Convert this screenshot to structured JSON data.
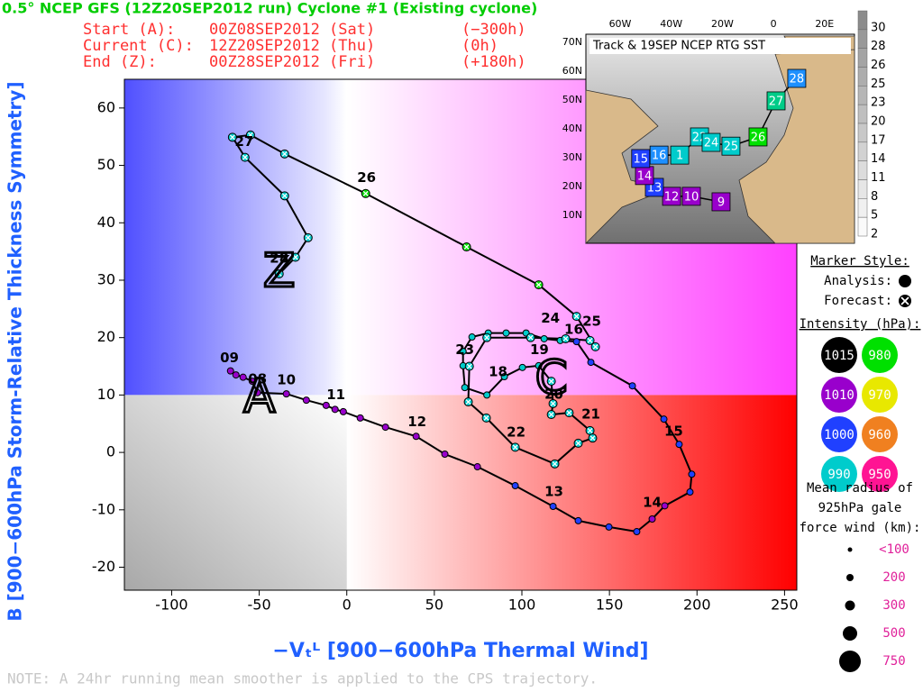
{
  "header": {
    "title": "0.5° NCEP GFS (12Z20SEP2012 run) Cyclone #1 (Existing cyclone)",
    "rows": [
      [
        "Start (A):",
        "00Z08SEP2012 (Sat)",
        "(−300h)"
      ],
      [
        "Current (C):",
        "12Z20SEP2012 (Thu)",
        "(0h)"
      ],
      [
        "End (Z):",
        "00Z28SEP2012 (Fri)",
        "(+180h)"
      ]
    ]
  },
  "chart_data": {
    "type": "line",
    "xlabel": "−Vₜᴸ [900−600hPa Thermal Wind]",
    "ylabel": "B [900−600hPa Storm-Relative Thickness Symmetry]",
    "xlim": [
      -127,
      257
    ],
    "ylim": [
      -24,
      65
    ],
    "xticks": [
      -100,
      -50,
      0,
      50,
      100,
      150,
      200,
      250
    ],
    "yticks": [
      -20,
      -10,
      0,
      10,
      20,
      30,
      40,
      50,
      60
    ],
    "threshold_x": 0,
    "threshold_y": 10,
    "series": [
      {
        "color": "#9900cc",
        "style": "analysis",
        "x": [
          -66.4,
          -63.3,
          -59.2,
          -54,
          -51,
          -34.5,
          -23.1,
          -11.8,
          -6.7,
          -2,
          7.7,
          22.1,
          39.6,
          56,
          74.6
        ],
        "y": [
          14.2,
          13.5,
          13.1,
          12.4,
          10.4,
          10.2,
          9.1,
          8.2,
          7.5,
          7.1,
          6,
          4.4,
          2.8,
          -0.3,
          -2.5
        ]
      },
      {
        "color": "#2040ff",
        "style": "analysis",
        "x": [
          96.2,
          117.8,
          132.2,
          149.7,
          165.6
        ],
        "y": [
          -5.8,
          -9.4,
          -11.9,
          -13,
          -13.8
        ]
      },
      {
        "color": "#9900cc",
        "style": "analysis",
        "x": [
          174.4,
          181.6
        ],
        "y": [
          -11.6,
          -9.3
        ]
      },
      {
        "color": "#2040ff",
        "style": "analysis",
        "x": [
          196,
          197,
          189.8,
          181.1,
          163.1,
          139.4,
          131.2
        ],
        "y": [
          -6.9,
          -3.8,
          1.4,
          5.8,
          11.6,
          15.7,
          19.3
        ]
      },
      {
        "color": "#00cccc",
        "style": "analysis",
        "x": [
          121.9,
          112.7,
          102.4,
          91,
          80.8,
          71.5,
          66.4,
          66.4,
          67.4,
          80,
          90,
          100.3,
          109.6
        ],
        "y": [
          19.5,
          19.8,
          20.8,
          20.8,
          20.8,
          20.1,
          17.6,
          15.1,
          11.3,
          10,
          13.2,
          14.8,
          15.1
        ]
      },
      {
        "color": "#00cccc",
        "style": "forecast",
        "x": [
          116.8,
          117.8,
          116.8,
          127,
          138.9,
          140.4,
          132.2,
          118.8,
          96.2,
          79.7,
          69.4,
          70,
          80,
          105,
          125,
          138.9,
          142,
          131.2
        ],
        "y": [
          12.4,
          8.5,
          6.6,
          6.9,
          3.8,
          2.5,
          1.6,
          -2,
          0.9,
          6,
          8.8,
          15,
          20,
          20,
          19.8,
          19.5,
          18.4,
          23.7
        ]
      },
      {
        "color": "#00e000",
        "style": "forecast",
        "x": [
          109.6,
          68.4,
          10.8
        ],
        "y": [
          29.2,
          35.8,
          45.1
        ]
      },
      {
        "color": "#00cccc",
        "style": "forecast",
        "x": [
          -35.5,
          -55,
          -65.3,
          -58.1,
          -35.5,
          -22.1,
          -29.3,
          -38.6
        ],
        "y": [
          52,
          55.3,
          54.9,
          51.4,
          44.7,
          37.4,
          34,
          31.1
        ]
      }
    ],
    "annotations": [
      {
        "text": "09",
        "x": -67,
        "y": 16.4
      },
      {
        "text": "08",
        "x": -51,
        "y": 12.7
      },
      {
        "text": "10",
        "x": -34.5,
        "y": 12.6
      },
      {
        "text": "11",
        "x": -6.2,
        "y": 10
      },
      {
        "text": "12",
        "x": 40.1,
        "y": 5.3
      },
      {
        "text": "13",
        "x": 118.3,
        "y": -6.9
      },
      {
        "text": "14",
        "x": 174.4,
        "y": -8.8
      },
      {
        "text": "15",
        "x": 186.7,
        "y": 3.6
      },
      {
        "text": "16",
        "x": 129.6,
        "y": 21.4
      },
      {
        "text": "18",
        "x": 86.4,
        "y": 14
      },
      {
        "text": "19",
        "x": 110,
        "y": 17.8
      },
      {
        "text": "20",
        "x": 118.3,
        "y": 10.1
      },
      {
        "text": "21",
        "x": 139.4,
        "y": 6.6
      },
      {
        "text": "22",
        "x": 96.7,
        "y": 3.5
      },
      {
        "text": "23",
        "x": 67.4,
        "y": 17.8
      },
      {
        "text": "24",
        "x": 116.3,
        "y": 23.3
      },
      {
        "text": "25",
        "x": 139.9,
        "y": 22.8
      },
      {
        "text": "26",
        "x": 11.3,
        "y": 47.8
      },
      {
        "text": "27",
        "x": -58.6,
        "y": 54.1
      },
      {
        "text": "28",
        "x": -38.6,
        "y": 33.8
      }
    ],
    "position_markers": [
      {
        "text": "A",
        "x": -49.9,
        "y": 9.3
      },
      {
        "text": "C",
        "x": 116.8,
        "y": 12.4
      },
      {
        "text": "Z",
        "x": -38.6,
        "y": 31.1
      }
    ]
  },
  "inset": {
    "title": "Track & 19SEP NCEP RTG SST",
    "lon_labels": [
      "60W",
      "40W",
      "20W",
      "0",
      "20E"
    ],
    "lat_labels": [
      "70N",
      "60N",
      "50N",
      "40N",
      "30N",
      "20N",
      "10N"
    ],
    "colorbar_labels": [
      "30",
      "28",
      "26",
      "25",
      "23",
      "20",
      "17",
      "14",
      "11",
      "8",
      "5",
      "2"
    ],
    "track_boxes": [
      {
        "label": "9",
        "color": "#9900cc",
        "lon": -25.4,
        "lat": 14.7
      },
      {
        "label": "10",
        "color": "#9900cc",
        "lon": -35.6,
        "lat": 16.6
      },
      {
        "label": "12",
        "color": "#9900cc",
        "lon": -42.4,
        "lat": 16.6
      },
      {
        "label": "13",
        "color": "#2040ff",
        "lon": -48.3,
        "lat": 19.7
      },
      {
        "label": "14",
        "color": "#9900cc",
        "lon": -51.7,
        "lat": 23.8
      },
      {
        "label": "15",
        "color": "#2040ff",
        "lon": -53,
        "lat": 29.7
      },
      {
        "label": "16",
        "color": "#1e90ff",
        "lon": -46.7,
        "lat": 30.9
      },
      {
        "label": "1",
        "color": "#00cccc",
        "lon": -39.6,
        "lat": 30.9
      },
      {
        "label": "22",
        "color": "#00cccc",
        "lon": -32.8,
        "lat": 37.2
      },
      {
        "label": "24",
        "color": "#00cccc",
        "lon": -28.8,
        "lat": 35.3
      },
      {
        "label": "25",
        "color": "#00cccc",
        "lon": -22,
        "lat": 34
      },
      {
        "label": "26",
        "color": "#00e000",
        "lon": -12.7,
        "lat": 37.2
      },
      {
        "label": "27",
        "color": "#00cc88",
        "lon": -6.5,
        "lat": 49.7
      },
      {
        "label": "28",
        "color": "#1e90ff",
        "lon": 0.6,
        "lat": 57.5
      }
    ]
  },
  "legend": {
    "marker_title": "Marker Style:",
    "analysis": "Analysis:",
    "forecast": "Forecast:",
    "intensity_title": "Intensity (hPa):",
    "intensity": [
      {
        "label": "1015",
        "color": "#000000"
      },
      {
        "label": "980",
        "color": "#00e000"
      },
      {
        "label": "1010",
        "color": "#9900cc"
      },
      {
        "label": "970",
        "color": "#e8e800"
      },
      {
        "label": "1000",
        "color": "#2040ff"
      },
      {
        "label": "960",
        "color": "#f08020"
      },
      {
        "label": "990",
        "color": "#00cccc"
      },
      {
        "label": "950",
        "color": "#ff1493"
      }
    ],
    "radius_title": [
      "Mean radius of",
      "925hPa gale",
      "force wind (km):"
    ],
    "sizes": [
      "<100",
      "200",
      "300",
      "500",
      "750"
    ]
  },
  "note": "NOTE:  A 24hr running mean smoother is applied to the CPS trajectory."
}
